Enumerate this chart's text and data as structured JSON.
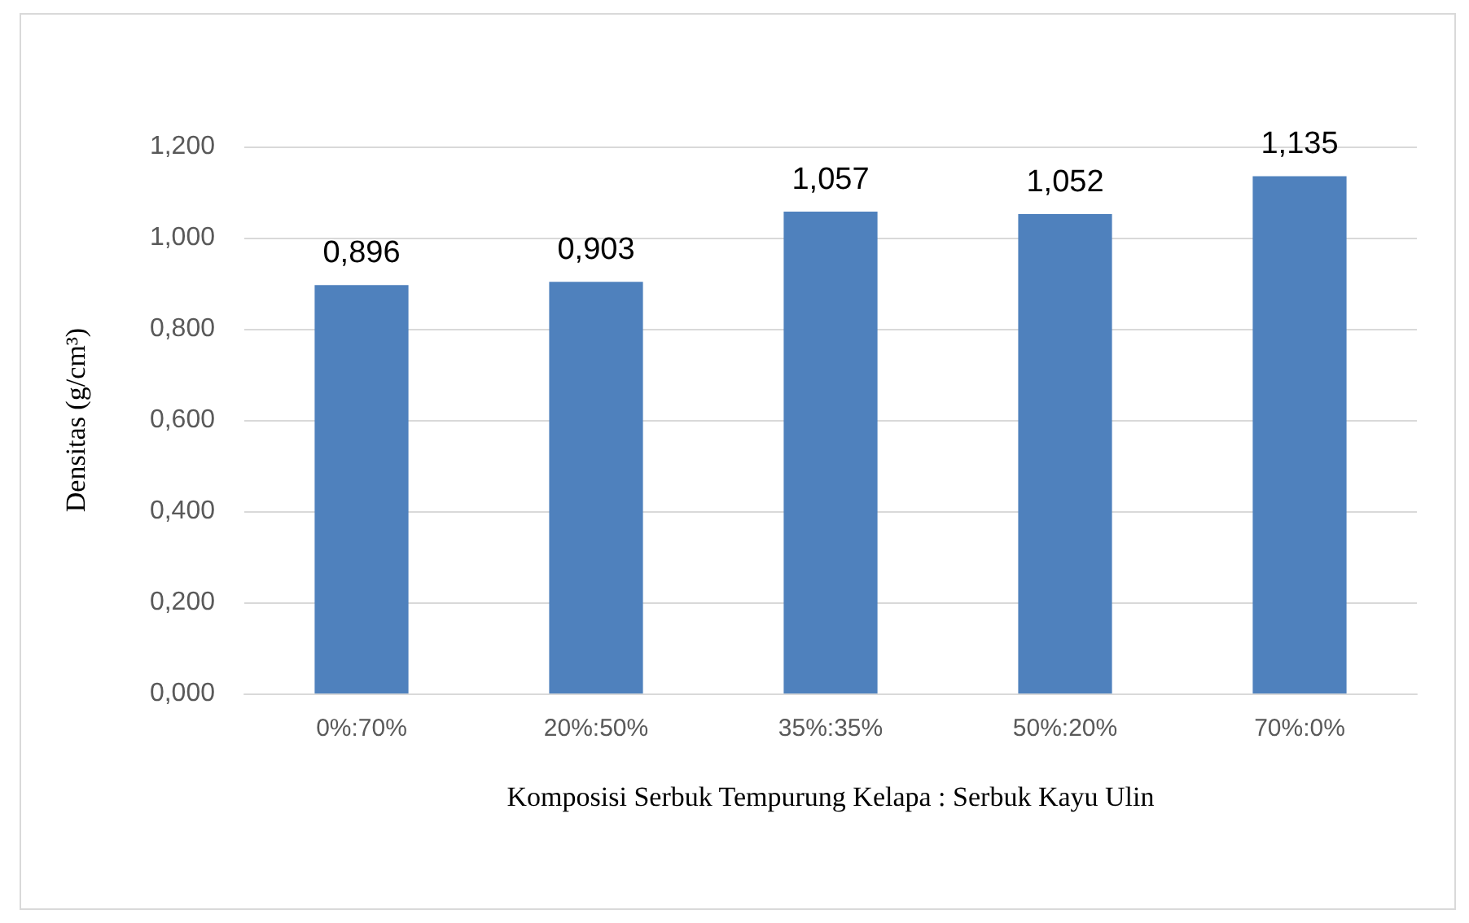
{
  "chart_data": {
    "type": "bar",
    "xlabel": "Komposisi Serbuk Tempurung Kelapa : Serbuk Kayu Ulin",
    "ylabel": "Densitas (g/cm³)",
    "categories": [
      "0%:70%",
      "20%:50%",
      "35%:35%",
      "50%:20%",
      "70%:0%"
    ],
    "values": [
      0.896,
      0.903,
      1.057,
      1.052,
      1.135
    ],
    "value_labels": [
      "0,896",
      "0,903",
      "1,057",
      "1,052",
      "1,135"
    ],
    "color": "#4f81bd",
    "ylim": [
      0,
      1.2
    ],
    "yticks": [
      {
        "value": 0,
        "label": "0,000"
      },
      {
        "value": 0.2,
        "label": "0,200"
      },
      {
        "value": 0.4,
        "label": "0,400"
      },
      {
        "value": 0.6,
        "label": "0,600"
      },
      {
        "value": 0.8,
        "label": "0,800"
      },
      {
        "value": 1.0,
        "label": "1,000"
      },
      {
        "value": 1.2,
        "label": "1,200"
      }
    ],
    "grid": "y"
  }
}
